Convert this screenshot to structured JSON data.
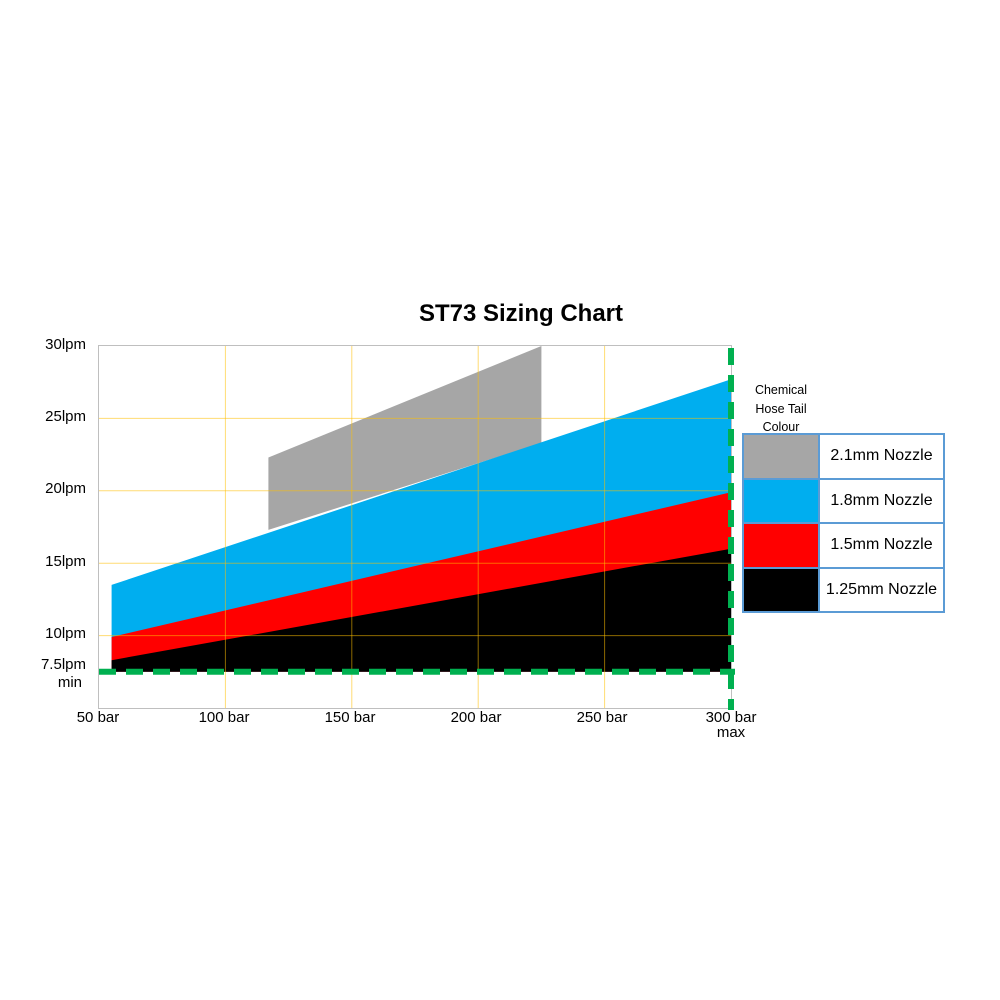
{
  "title": "ST73 Sizing Chart",
  "colors": {
    "plot_border": "#BFBFBF",
    "gridline": "rgba(255,192,0,0.55)",
    "limit_line_green": "#00B050",
    "legend_border": "#5B9BD5",
    "band_gray": "#A6A6A6",
    "band_blue": "#00AEEF",
    "band_red": "#FF0000",
    "band_black": "#000000"
  },
  "y_axis": {
    "tick_labels": [
      "30lpm",
      "25lpm",
      "20lpm",
      "15lpm",
      "10lpm"
    ],
    "min_label_line1": "7.5lpm",
    "min_label_line2": "min"
  },
  "x_axis": {
    "tick_labels": [
      "50 bar",
      "100 bar",
      "150 bar",
      "200 bar",
      "250 bar"
    ],
    "max_label_line1": "300 bar",
    "max_label_line2": "max"
  },
  "legend": {
    "header_lines": [
      "Chemical",
      "Hose Tail",
      "Colour"
    ],
    "items": [
      {
        "label": "2.1mm Nozzle",
        "color": "#A6A6A6"
      },
      {
        "label": "1.8mm Nozzle",
        "color": "#00AEEF"
      },
      {
        "label": "1.5mm Nozzle",
        "color": "#FF0000"
      },
      {
        "label": "1.25mm Nozzle",
        "color": "#000000"
      }
    ]
  },
  "chart_data": {
    "type": "area",
    "title": "ST73 Sizing Chart",
    "x_unit": "bar",
    "y_unit": "lpm",
    "x_range": [
      50,
      300
    ],
    "y_range": [
      5,
      30
    ],
    "x_ticks": [
      50,
      100,
      150,
      200,
      250,
      300
    ],
    "y_gridlines": [
      10,
      15,
      20,
      25
    ],
    "min_flow_line_lpm": 7.5,
    "max_pressure_line_bar": 300,
    "grid_on": true,
    "legend_position": "right",
    "bands": [
      {
        "name": "2.1mm Nozzle",
        "color": "#A6A6A6",
        "x_start": 117,
        "x_end": 225,
        "top_start": 22.3,
        "top_end": 30,
        "bottom_start": 17.3,
        "bottom_end": 23.3
      },
      {
        "name": "1.8mm Nozzle",
        "color": "#00AEEF",
        "x_start": 55,
        "x_end": 300,
        "top_start": 13.5,
        "top_end": 27.7,
        "bottom_start": 7.5,
        "bottom_end": 7.5
      },
      {
        "name": "1.5mm Nozzle",
        "color": "#FF0000",
        "x_start": 55,
        "x_end": 300,
        "top_start": 9.9,
        "top_end": 19.9,
        "bottom_start": 7.5,
        "bottom_end": 7.5
      },
      {
        "name": "1.25mm Nozzle",
        "color": "#000000",
        "x_start": 55,
        "x_end": 300,
        "top_start": 8.3,
        "top_end": 16.0,
        "bottom_start": 7.5,
        "bottom_end": 7.5
      }
    ]
  }
}
